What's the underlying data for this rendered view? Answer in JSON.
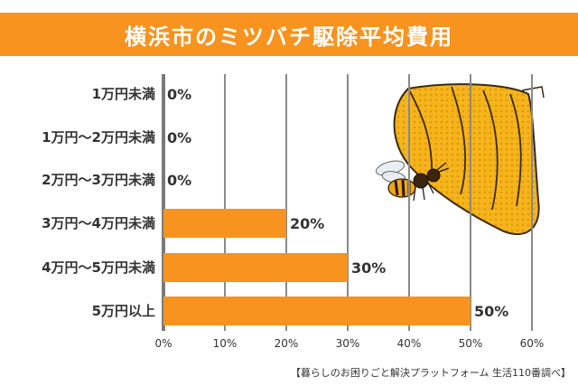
{
  "colors": {
    "accent": "#f7931e",
    "text": "#333333",
    "grid": "#8a8a8a"
  },
  "title": "横浜市のミツバチ駆除平均費用",
  "credit": "【暮らしのお困りごと解決プラットフォーム 生活110番調べ】",
  "chart_data": {
    "type": "bar",
    "orientation": "horizontal",
    "title": "横浜市のミツバチ駆除平均費用",
    "categories": [
      "1万円未満",
      "1万円〜2万円未満",
      "2万円〜3万円未満",
      "3万円〜4万円未満",
      "4万円〜5万円未満",
      "5万円以上"
    ],
    "values": [
      0,
      0,
      0,
      20,
      30,
      50
    ],
    "value_labels": [
      "0%",
      "0%",
      "0%",
      "20%",
      "30%",
      "50%"
    ],
    "xlim": [
      0,
      60
    ],
    "xticks": [
      "0%",
      "10%",
      "20%",
      "30%",
      "40%",
      "50%",
      "60%"
    ],
    "grid": true,
    "bar_color": "#f7931e"
  },
  "illustration": {
    "name": "beehive-with-bee-icon"
  }
}
